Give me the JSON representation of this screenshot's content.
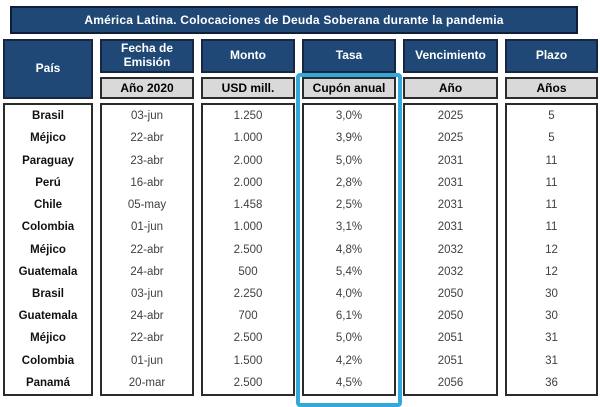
{
  "title": "América Latina. Colocaciones de Deuda Soberana durante la pandemia",
  "colors": {
    "header_navy": "#1F4876",
    "subheader_gray": "#D9D9D9",
    "highlight_cyan": "#34A7DB",
    "data_text": "#3f3f3f"
  },
  "table": {
    "columns": [
      {
        "key": "pais",
        "header": "País",
        "subheader": ""
      },
      {
        "key": "fecha",
        "header": "Fecha de Emisión",
        "subheader": "Año 2020"
      },
      {
        "key": "monto",
        "header": "Monto",
        "subheader": "USD mill."
      },
      {
        "key": "tasa",
        "header": "Tasa",
        "subheader": "Cupón anual",
        "highlighted": true
      },
      {
        "key": "vencimiento",
        "header": "Vencimiento",
        "subheader": "Año"
      },
      {
        "key": "plazo",
        "header": "Plazo",
        "subheader": "Años"
      }
    ],
    "rows": [
      [
        "Brasil",
        "03-jun",
        "1.250",
        "3,0%",
        "2025",
        "5"
      ],
      [
        "Méjico",
        "22-abr",
        "1.000",
        "3,9%",
        "2025",
        "5"
      ],
      [
        "Paraguay",
        "23-abr",
        "2.000",
        "5,0%",
        "2031",
        "11"
      ],
      [
        "Perú",
        "16-abr",
        "2.000",
        "2,8%",
        "2031",
        "11"
      ],
      [
        "Chile",
        "05-may",
        "1.458",
        "2,5%",
        "2031",
        "11"
      ],
      [
        "Colombia",
        "01-jun",
        "1.000",
        "3,1%",
        "2031",
        "11"
      ],
      [
        "Méjico",
        "22-abr",
        "2.500",
        "4,8%",
        "2032",
        "12"
      ],
      [
        "Guatemala",
        "24-abr",
        "500",
        "5,4%",
        "2032",
        "12"
      ],
      [
        "Brasil",
        "03-jun",
        "2.250",
        "4,0%",
        "2050",
        "30"
      ],
      [
        "Guatemala",
        "24-abr",
        "700",
        "6,1%",
        "2050",
        "30"
      ],
      [
        "Méjico",
        "22-abr",
        "2.500",
        "5,0%",
        "2051",
        "31"
      ],
      [
        "Colombia",
        "01-jun",
        "1.500",
        "4,2%",
        "2051",
        "31"
      ],
      [
        "Panamá",
        "20-mar",
        "2.500",
        "4,5%",
        "2056",
        "36"
      ]
    ]
  }
}
